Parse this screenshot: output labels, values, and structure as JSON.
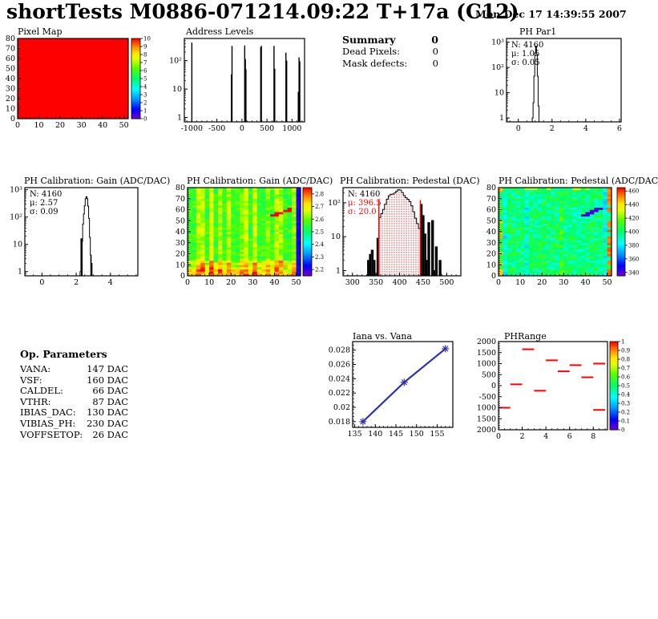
{
  "header": {
    "title": "shortTests M0886-071214.09:22 T+17a (C12)",
    "datetime": "Mon Dec 17 14:39:55 2007"
  },
  "summary": {
    "title": "Summary",
    "total": "0",
    "rows": [
      {
        "label": "Dead Pixels:",
        "value": "0"
      },
      {
        "label": "Mask defects:",
        "value": "0"
      }
    ]
  },
  "op_parameters": {
    "title": "Op. Parameters",
    "rows": [
      {
        "label": "VANA:",
        "value": "147 DAC"
      },
      {
        "label": "VSF:",
        "value": "160 DAC"
      },
      {
        "label": "CALDEL:",
        "value": "66 DAC"
      },
      {
        "label": "VTHR:",
        "value": "87 DAC"
      },
      {
        "label": "IBIAS_DAC:",
        "value": "130 DAC"
      },
      {
        "label": "VIBIAS_PH:",
        "value": "230 DAC"
      },
      {
        "label": "VOFFSETOP:",
        "value": "26 DAC"
      }
    ]
  },
  "colors": {
    "red": "#ff0000",
    "blue": "#3030b0",
    "frame": "#000000"
  },
  "chart_data": [
    {
      "key": "pixel_map",
      "type": "uniform",
      "title": "Pixel Map",
      "xlim": [
        0,
        52
      ],
      "ylim": [
        0,
        80
      ],
      "xticks": [
        0,
        10,
        20,
        30,
        40,
        50
      ],
      "yticks": [
        0,
        10,
        20,
        30,
        40,
        50,
        60,
        70,
        80
      ],
      "xminor": 2,
      "yminor": 2,
      "uniform_value": 10,
      "zmin": 0,
      "zmax": 10,
      "zticks": [
        0,
        1,
        2,
        3,
        4,
        5,
        6,
        7,
        8,
        9,
        10
      ]
    },
    {
      "key": "address_levels",
      "type": "spikes",
      "title": "Address Levels",
      "xlim": [
        -1150,
        1250
      ],
      "ylog": [
        0.7,
        600
      ],
      "xticks": [
        -1000,
        -500,
        0,
        500,
        1000
      ],
      "xminor": 100,
      "yticks": [
        {
          "v": 1,
          "l": "1"
        },
        {
          "v": 10,
          "l": "10"
        },
        {
          "v": 100,
          "l": "10²"
        }
      ],
      "spikes": [
        [
          -1000,
          430
        ],
        [
          -210,
          33
        ],
        [
          -198,
          330
        ],
        [
          55,
          340
        ],
        [
          68,
          115
        ],
        [
          80,
          50
        ],
        [
          375,
          300
        ],
        [
          388,
          330
        ],
        [
          640,
          330
        ],
        [
          655,
          52
        ],
        [
          878,
          190
        ],
        [
          893,
          100
        ],
        [
          1125,
          8
        ],
        [
          1140,
          130
        ],
        [
          1155,
          95
        ]
      ]
    },
    {
      "key": "ph_par1",
      "type": "hist",
      "title": "PH Par1",
      "stats": [
        {
          "t": "N: 4160",
          "c": "#000000"
        },
        {
          "t": "μ: 1.05",
          "c": "#000000"
        },
        {
          "t": "σ: 0.05",
          "c": "#000000"
        }
      ],
      "xlim": [
        -0.7,
        6.1
      ],
      "ylog": [
        0.7,
        1400
      ],
      "xticks": [
        0,
        2,
        4,
        6
      ],
      "xminor": 0.5,
      "yticks": [
        {
          "v": 1,
          "l": "1"
        },
        {
          "v": 10,
          "l": "10"
        },
        {
          "v": 100,
          "l": "10²"
        },
        {
          "v": 1000,
          "l": "10³"
        }
      ],
      "binw": 0.05,
      "bins": [
        [
          0.85,
          1
        ],
        [
          0.9,
          4
        ],
        [
          0.95,
          45
        ],
        [
          1.0,
          380
        ],
        [
          1.05,
          700
        ],
        [
          1.1,
          330
        ],
        [
          1.15,
          45
        ],
        [
          1.2,
          3
        ]
      ]
    },
    {
      "key": "gain_hist",
      "type": "hist",
      "title": "PH Calibration: Gain (ADC/DAC)",
      "stats": [
        {
          "t": "N: 4160",
          "c": "#000000"
        },
        {
          "t": "μ: 2.57",
          "c": "#000000"
        },
        {
          "t": "σ: 0.09",
          "c": "#000000"
        }
      ],
      "xlim": [
        -1,
        5.6
      ],
      "ylog": [
        0.7,
        1200
      ],
      "xticks": [
        0,
        2,
        4
      ],
      "xminor": 0.5,
      "yticks": [
        {
          "v": 1,
          "l": "1"
        },
        {
          "v": 10,
          "l": "10"
        },
        {
          "v": 100,
          "l": "10²"
        },
        {
          "v": 1000,
          "l": "10³"
        }
      ],
      "binw": 0.05,
      "bins": [
        [
          2.25,
          1
        ],
        [
          2.3,
          16
        ],
        [
          2.35,
          13
        ],
        [
          2.4,
          55
        ],
        [
          2.45,
          130
        ],
        [
          2.5,
          260
        ],
        [
          2.55,
          470
        ],
        [
          2.6,
          560
        ],
        [
          2.65,
          470
        ],
        [
          2.7,
          250
        ],
        [
          2.75,
          90
        ],
        [
          2.8,
          18
        ],
        [
          2.85,
          4
        ],
        [
          2.9,
          2
        ]
      ],
      "solid": [
        [
          2.3,
          16
        ],
        [
          2.35,
          13
        ],
        [
          2.85,
          4
        ],
        [
          2.9,
          2
        ]
      ]
    },
    {
      "key": "gain_map",
      "type": "noisemap",
      "title": "PH Calibration: Gain (ADC/DAC)",
      "xlim": [
        0,
        52
      ],
      "ylim": [
        0,
        80
      ],
      "xticks": [
        0,
        10,
        20,
        30,
        40,
        50
      ],
      "yticks": [
        0,
        10,
        20,
        30,
        40,
        50,
        60,
        70,
        80
      ],
      "xminor": 2,
      "yminor": 2,
      "cols": 26,
      "rows": 40,
      "seed": 42,
      "zmin": 2.15,
      "zmax": 2.85,
      "base": 2.56,
      "jitter": 0.05,
      "col_plus_p": 0.3,
      "col_plus_amp": 0.12,
      "col_minus_p": 0.08,
      "col_minus_amp": 0.05,
      "bottom_rows": 7,
      "bottom_amp": 0.11,
      "last_col_z": 2.22,
      "streak": {
        "x1": 38,
        "y1": 54,
        "x2": 47,
        "y2": 60,
        "z": 2.88
      },
      "zticks": [
        2.2,
        2.3,
        2.4,
        2.5,
        2.6,
        2.7,
        2.8
      ]
    },
    {
      "key": "ped_hist",
      "type": "pedestal",
      "title": "PH Calibration: Pedestal (DAC)",
      "stats": [
        {
          "t": "N: 4160",
          "c": "#000000"
        },
        {
          "t": "μ: 396.5",
          "c": "#ff0000"
        },
        {
          "t": "σ: 20.0",
          "c": "#ff0000"
        }
      ],
      "xlim": [
        280,
        530
      ],
      "ylog": [
        0.7,
        280
      ],
      "xticks": [
        300,
        350,
        400,
        450,
        500
      ],
      "xminor": 10,
      "yticks": [
        {
          "v": 1,
          "l": "1"
        },
        {
          "v": 10,
          "l": "10"
        },
        {
          "v": 100,
          "l": "10²"
        }
      ],
      "mu": 396.5,
      "sigma": 20,
      "peak": 225,
      "binw": 4,
      "main": [
        356,
        444
      ],
      "tail_left": [
        [
          334,
          2
        ],
        [
          338,
          3
        ],
        [
          342,
          4
        ],
        [
          346,
          2
        ],
        [
          350,
          0
        ],
        [
          354,
          9
        ]
      ],
      "tail_right": [
        [
          446,
          90
        ],
        [
          450,
          42
        ],
        [
          454,
          12
        ],
        [
          458,
          2
        ],
        [
          462,
          26
        ],
        [
          466,
          0
        ],
        [
          470,
          30
        ],
        [
          474,
          1
        ],
        [
          478,
          5
        ],
        [
          482,
          0
        ],
        [
          486,
          2
        ]
      ],
      "dot_range": [
        356,
        444
      ],
      "red_lines": [
        356,
        444
      ],
      "red_line_top": 120
    },
    {
      "key": "ped_map",
      "type": "noisemap",
      "title": "PH Calibration: Pedestal (ADC/DAC",
      "xlim": [
        0,
        52
      ],
      "ylim": [
        0,
        80
      ],
      "xticks": [
        0,
        10,
        20,
        30,
        40,
        50
      ],
      "yticks": [
        0,
        10,
        20,
        30,
        40,
        50,
        60,
        70,
        80
      ],
      "xminor": 2,
      "yminor": 2,
      "cols": 26,
      "rows": 40,
      "seed": 7,
      "zmin": 335,
      "zmax": 465,
      "base": 399,
      "jitter": 13,
      "col_plus_p": 0.08,
      "col_plus_amp": 10,
      "col_minus_p": 0.3,
      "col_minus_amp": 15,
      "bottom_rows": 0,
      "bottom_amp": 0,
      "streak": {
        "x1": 38,
        "y1": 54,
        "x2": 46,
        "y2": 61,
        "z": 341
      },
      "edges": {
        "left_p": 0.25,
        "left_z": 449,
        "right_p": 0.5,
        "right_z": 458,
        "top_p": 0.3,
        "top_z": 434
      },
      "zticks": [
        340,
        360,
        380,
        400,
        420,
        440,
        460
      ]
    },
    {
      "key": "iana",
      "type": "line",
      "title": "Iana vs. Vana",
      "xlim": [
        134.5,
        158.8
      ],
      "ylim": [
        0.0172,
        0.0292
      ],
      "xticks": [
        135,
        140,
        145,
        150,
        155
      ],
      "xminor": 1,
      "yticks": [
        {
          "v": 0.018,
          "l": "0.018"
        },
        {
          "v": 0.02,
          "l": "0.02"
        },
        {
          "v": 0.022,
          "l": "0.022"
        },
        {
          "v": 0.024,
          "l": "0.024"
        },
        {
          "v": 0.026,
          "l": "0.026"
        },
        {
          "v": 0.028,
          "l": "0.028"
        }
      ],
      "yminor": 0.0005,
      "points": [
        [
          137,
          0.018
        ],
        [
          147,
          0.0235
        ],
        [
          157,
          0.0282
        ]
      ]
    },
    {
      "key": "phrange",
      "type": "segments",
      "title": "PHRange",
      "xlim": [
        0,
        9.2
      ],
      "ylim": [
        -2000,
        2000
      ],
      "xticks": [
        0,
        2,
        4,
        6,
        8
      ],
      "xminor": 0.5,
      "yticks": [
        {
          "v": 2000,
          "l": "2000"
        },
        {
          "v": 1500,
          "l": "1500"
        },
        {
          "v": 1000,
          "l": "1000"
        },
        {
          "v": 500,
          "l": "500"
        },
        {
          "v": 0,
          "l": "0"
        },
        {
          "v": -500,
          "l": "-500"
        },
        {
          "v": -1000,
          "l": "1000"
        },
        {
          "v": -1500,
          "l": "1500"
        },
        {
          "v": -2000,
          "l": "2000"
        }
      ],
      "yminor": 100,
      "segments": [
        [
          0,
          1,
          -1000
        ],
        [
          1,
          2,
          60
        ],
        [
          2,
          3,
          1650
        ],
        [
          3,
          4,
          -230
        ],
        [
          4,
          5,
          1150
        ],
        [
          5,
          6,
          650
        ],
        [
          6,
          7,
          930
        ],
        [
          7,
          8,
          380
        ],
        [
          8,
          9,
          1000
        ],
        [
          8,
          9,
          -1100
        ]
      ],
      "zmin": 0,
      "zmax": 1,
      "zticks": [
        0,
        0.1,
        0.2,
        0.3,
        0.4,
        0.5,
        0.6,
        0.7,
        0.8,
        0.9,
        1
      ]
    }
  ]
}
